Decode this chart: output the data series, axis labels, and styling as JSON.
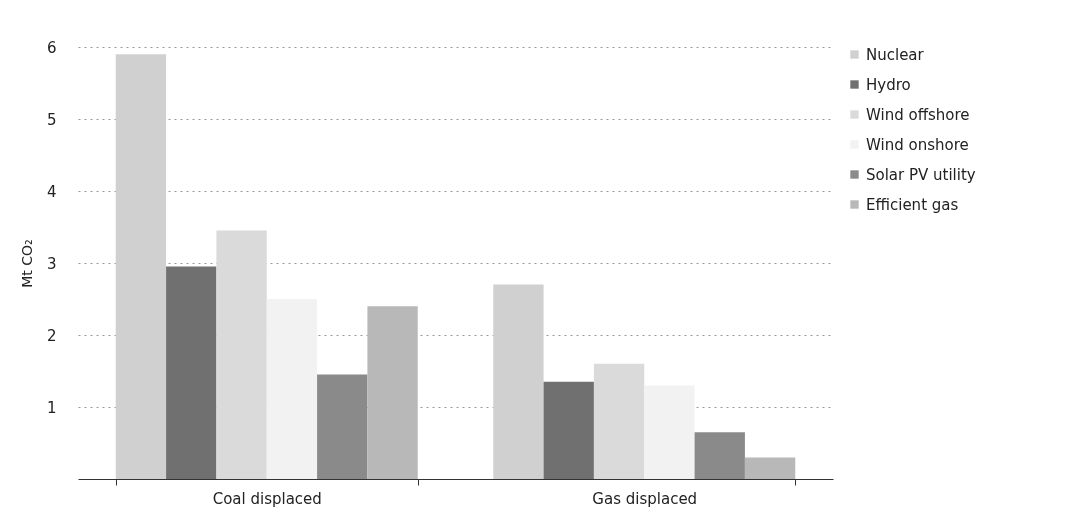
{
  "chart_data": {
    "type": "bar",
    "ylabel": "Mt CO₂",
    "categories": [
      "Coal displaced",
      "Gas displaced"
    ],
    "series": [
      {
        "name": "Nuclear",
        "color": "#d0d0d0",
        "values": [
          5.9,
          2.7
        ]
      },
      {
        "name": "Hydro",
        "color": "#707070",
        "values": [
          2.95,
          1.35
        ]
      },
      {
        "name": "Wind offshore",
        "color": "#dadada",
        "values": [
          3.45,
          1.6
        ]
      },
      {
        "name": "Wind onshore",
        "color": "#f2f2f2",
        "values": [
          2.5,
          1.3
        ]
      },
      {
        "name": "Solar PV utility",
        "color": "#8a8a8a",
        "values": [
          1.45,
          0.65
        ]
      },
      {
        "name": "Efficient gas",
        "color": "#b8b8b8",
        "values": [
          2.4,
          0.3
        ]
      }
    ],
    "ylim": [
      0,
      6
    ],
    "yticks": [
      1,
      2,
      3,
      4,
      5,
      6
    ],
    "grid": "y",
    "legend": "right"
  }
}
